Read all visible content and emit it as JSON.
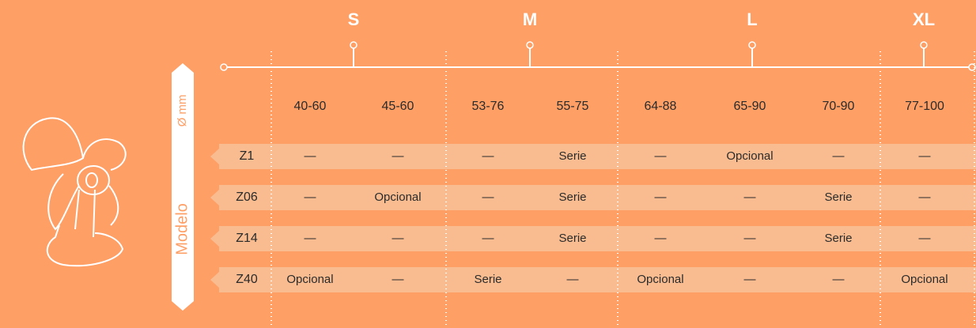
{
  "sizes": [
    "S",
    "M",
    "L",
    "XL"
  ],
  "axis_labels": {
    "diameter": "Ø mm",
    "model": "Modelo"
  },
  "table": {
    "columns": [
      "40-60",
      "45-60",
      "53-76",
      "55-75",
      "64-88",
      "65-90",
      "70-90",
      "77-100"
    ],
    "rows": [
      [
        "Z1",
        "—",
        "—",
        "—",
        "Serie",
        "—",
        "Opcional",
        "—",
        "—"
      ],
      [
        "Z06",
        "—",
        "Opcional",
        "—",
        "Serie",
        "—",
        "—",
        "Serie",
        "—"
      ],
      [
        "Z14",
        "—",
        "—",
        "—",
        "Serie",
        "—",
        "—",
        "Serie",
        "—"
      ],
      [
        "Z40",
        "Opcional",
        "—",
        "Serie",
        "—",
        "Opcional",
        "—",
        "—",
        "Opcional"
      ]
    ]
  }
}
